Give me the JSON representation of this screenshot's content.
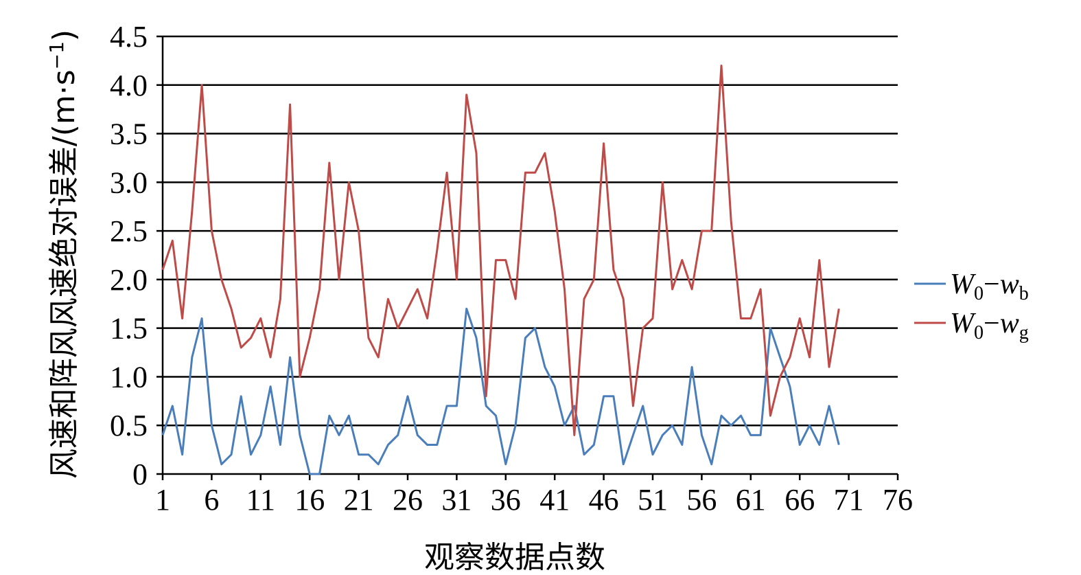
{
  "chart_data": {
    "type": "line",
    "xlabel": "观察数据点数",
    "ylabel": "风速和阵风风速绝对误差/(m·s",
    "ylabel_sup": "−1",
    "ylabel_close": ")",
    "xlim": [
      1,
      76
    ],
    "ylim": [
      0,
      4.5
    ],
    "x_ticks": [
      1,
      6,
      11,
      16,
      21,
      26,
      31,
      36,
      41,
      46,
      51,
      56,
      61,
      66,
      71,
      76
    ],
    "y_ticks": [
      0,
      0.5,
      1.0,
      1.5,
      2.0,
      2.5,
      3.0,
      3.5,
      4.0,
      4.5
    ],
    "y_tick_labels": [
      "0",
      "0.5",
      "1.0",
      "1.5",
      "2.0",
      "2.5",
      "3.0",
      "3.5",
      "4.0",
      "4.5"
    ],
    "grid": "horizontal",
    "legend_position": "right",
    "series": [
      {
        "name": "W0−wb",
        "legend": {
          "main": "W",
          "sub1": "0",
          "dash": "−",
          "main2": "w",
          "sub2": "b"
        },
        "color": "#4a7ebb",
        "x": [
          1,
          2,
          3,
          4,
          5,
          6,
          7,
          8,
          9,
          10,
          11,
          12,
          13,
          14,
          15,
          16,
          17,
          18,
          19,
          20,
          21,
          22,
          23,
          24,
          25,
          26,
          27,
          28,
          29,
          30,
          31,
          32,
          33,
          34,
          35,
          36,
          37,
          38,
          39,
          40,
          41,
          42,
          43,
          44,
          45,
          46,
          47,
          48,
          49,
          50,
          51,
          52,
          53,
          54,
          55,
          56,
          57,
          58,
          59,
          60,
          61,
          62,
          63,
          64,
          65,
          66,
          67,
          68,
          69,
          70
        ],
        "values": [
          0.4,
          0.7,
          0.2,
          1.2,
          1.6,
          0.5,
          0.1,
          0.2,
          0.8,
          0.2,
          0.4,
          0.9,
          0.3,
          1.2,
          0.4,
          0,
          0,
          0.6,
          0.4,
          0.6,
          0.2,
          0.2,
          0.1,
          0.3,
          0.4,
          0.8,
          0.4,
          0.3,
          0.3,
          0.7,
          0.7,
          1.7,
          1.4,
          0.7,
          0.6,
          0.1,
          0.5,
          1.4,
          1.5,
          1.1,
          0.9,
          0.5,
          0.7,
          0.2,
          0.3,
          0.8,
          0.8,
          0.1,
          0.4,
          0.7,
          0.2,
          0.4,
          0.5,
          0.3,
          1.1,
          0.4,
          0.1,
          0.6,
          0.5,
          0.6,
          0.4,
          0.4,
          1.5,
          1.2,
          0.9,
          0.3,
          0.5,
          0.3,
          0.7,
          0.3
        ]
      },
      {
        "name": "W0−wg",
        "legend": {
          "main": "W",
          "sub1": "0",
          "dash": "−",
          "main2": "w",
          "sub2": "g"
        },
        "color": "#be4b48",
        "x": [
          1,
          2,
          3,
          4,
          5,
          6,
          7,
          8,
          9,
          10,
          11,
          12,
          13,
          14,
          15,
          16,
          17,
          18,
          19,
          20,
          21,
          22,
          23,
          24,
          25,
          26,
          27,
          28,
          29,
          30,
          31,
          32,
          33,
          34,
          35,
          36,
          37,
          38,
          39,
          40,
          41,
          42,
          43,
          44,
          45,
          46,
          47,
          48,
          49,
          50,
          51,
          52,
          53,
          54,
          55,
          56,
          57,
          58,
          59,
          60,
          61,
          62,
          63,
          64,
          65,
          66,
          67,
          68,
          69,
          70
        ],
        "values": [
          2.1,
          2.4,
          1.6,
          2.7,
          4.0,
          2.5,
          2.0,
          1.7,
          1.3,
          1.4,
          1.6,
          1.2,
          1.8,
          3.8,
          1.0,
          1.4,
          1.9,
          3.2,
          2.0,
          3.0,
          2.5,
          1.4,
          1.2,
          1.8,
          1.5,
          1.7,
          1.9,
          1.6,
          2.3,
          3.1,
          2.0,
          3.9,
          3.3,
          0.8,
          2.2,
          2.2,
          1.8,
          3.1,
          3.1,
          3.3,
          2.7,
          1.9,
          0.4,
          1.8,
          2.0,
          3.4,
          2.1,
          1.8,
          0.7,
          1.5,
          1.6,
          3.0,
          1.9,
          2.2,
          1.9,
          2.5,
          2.5,
          4.2,
          2.6,
          1.6,
          1.6,
          1.9,
          0.6,
          1.0,
          1.2,
          1.6,
          1.2,
          2.2,
          1.1,
          1.7
        ]
      }
    ]
  }
}
